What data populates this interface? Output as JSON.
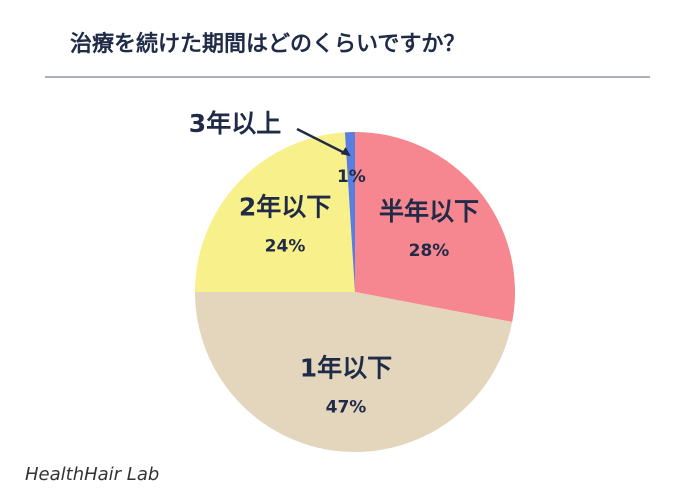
{
  "chart_data": {
    "type": "pie",
    "title": "治療を続けた期間はどのくらいですか？",
    "categories": [
      "半年以下",
      "1年以下",
      "2年以下",
      "3年以上"
    ],
    "values": [
      28,
      47,
      24,
      1
    ],
    "value_labels": [
      "28%",
      "47%",
      "24%",
      "1%"
    ],
    "colors": [
      "#f6868f",
      "#e4d5bd",
      "#f8f08a",
      "#5a7ee0"
    ],
    "watermark": "HealthHair Lab"
  }
}
